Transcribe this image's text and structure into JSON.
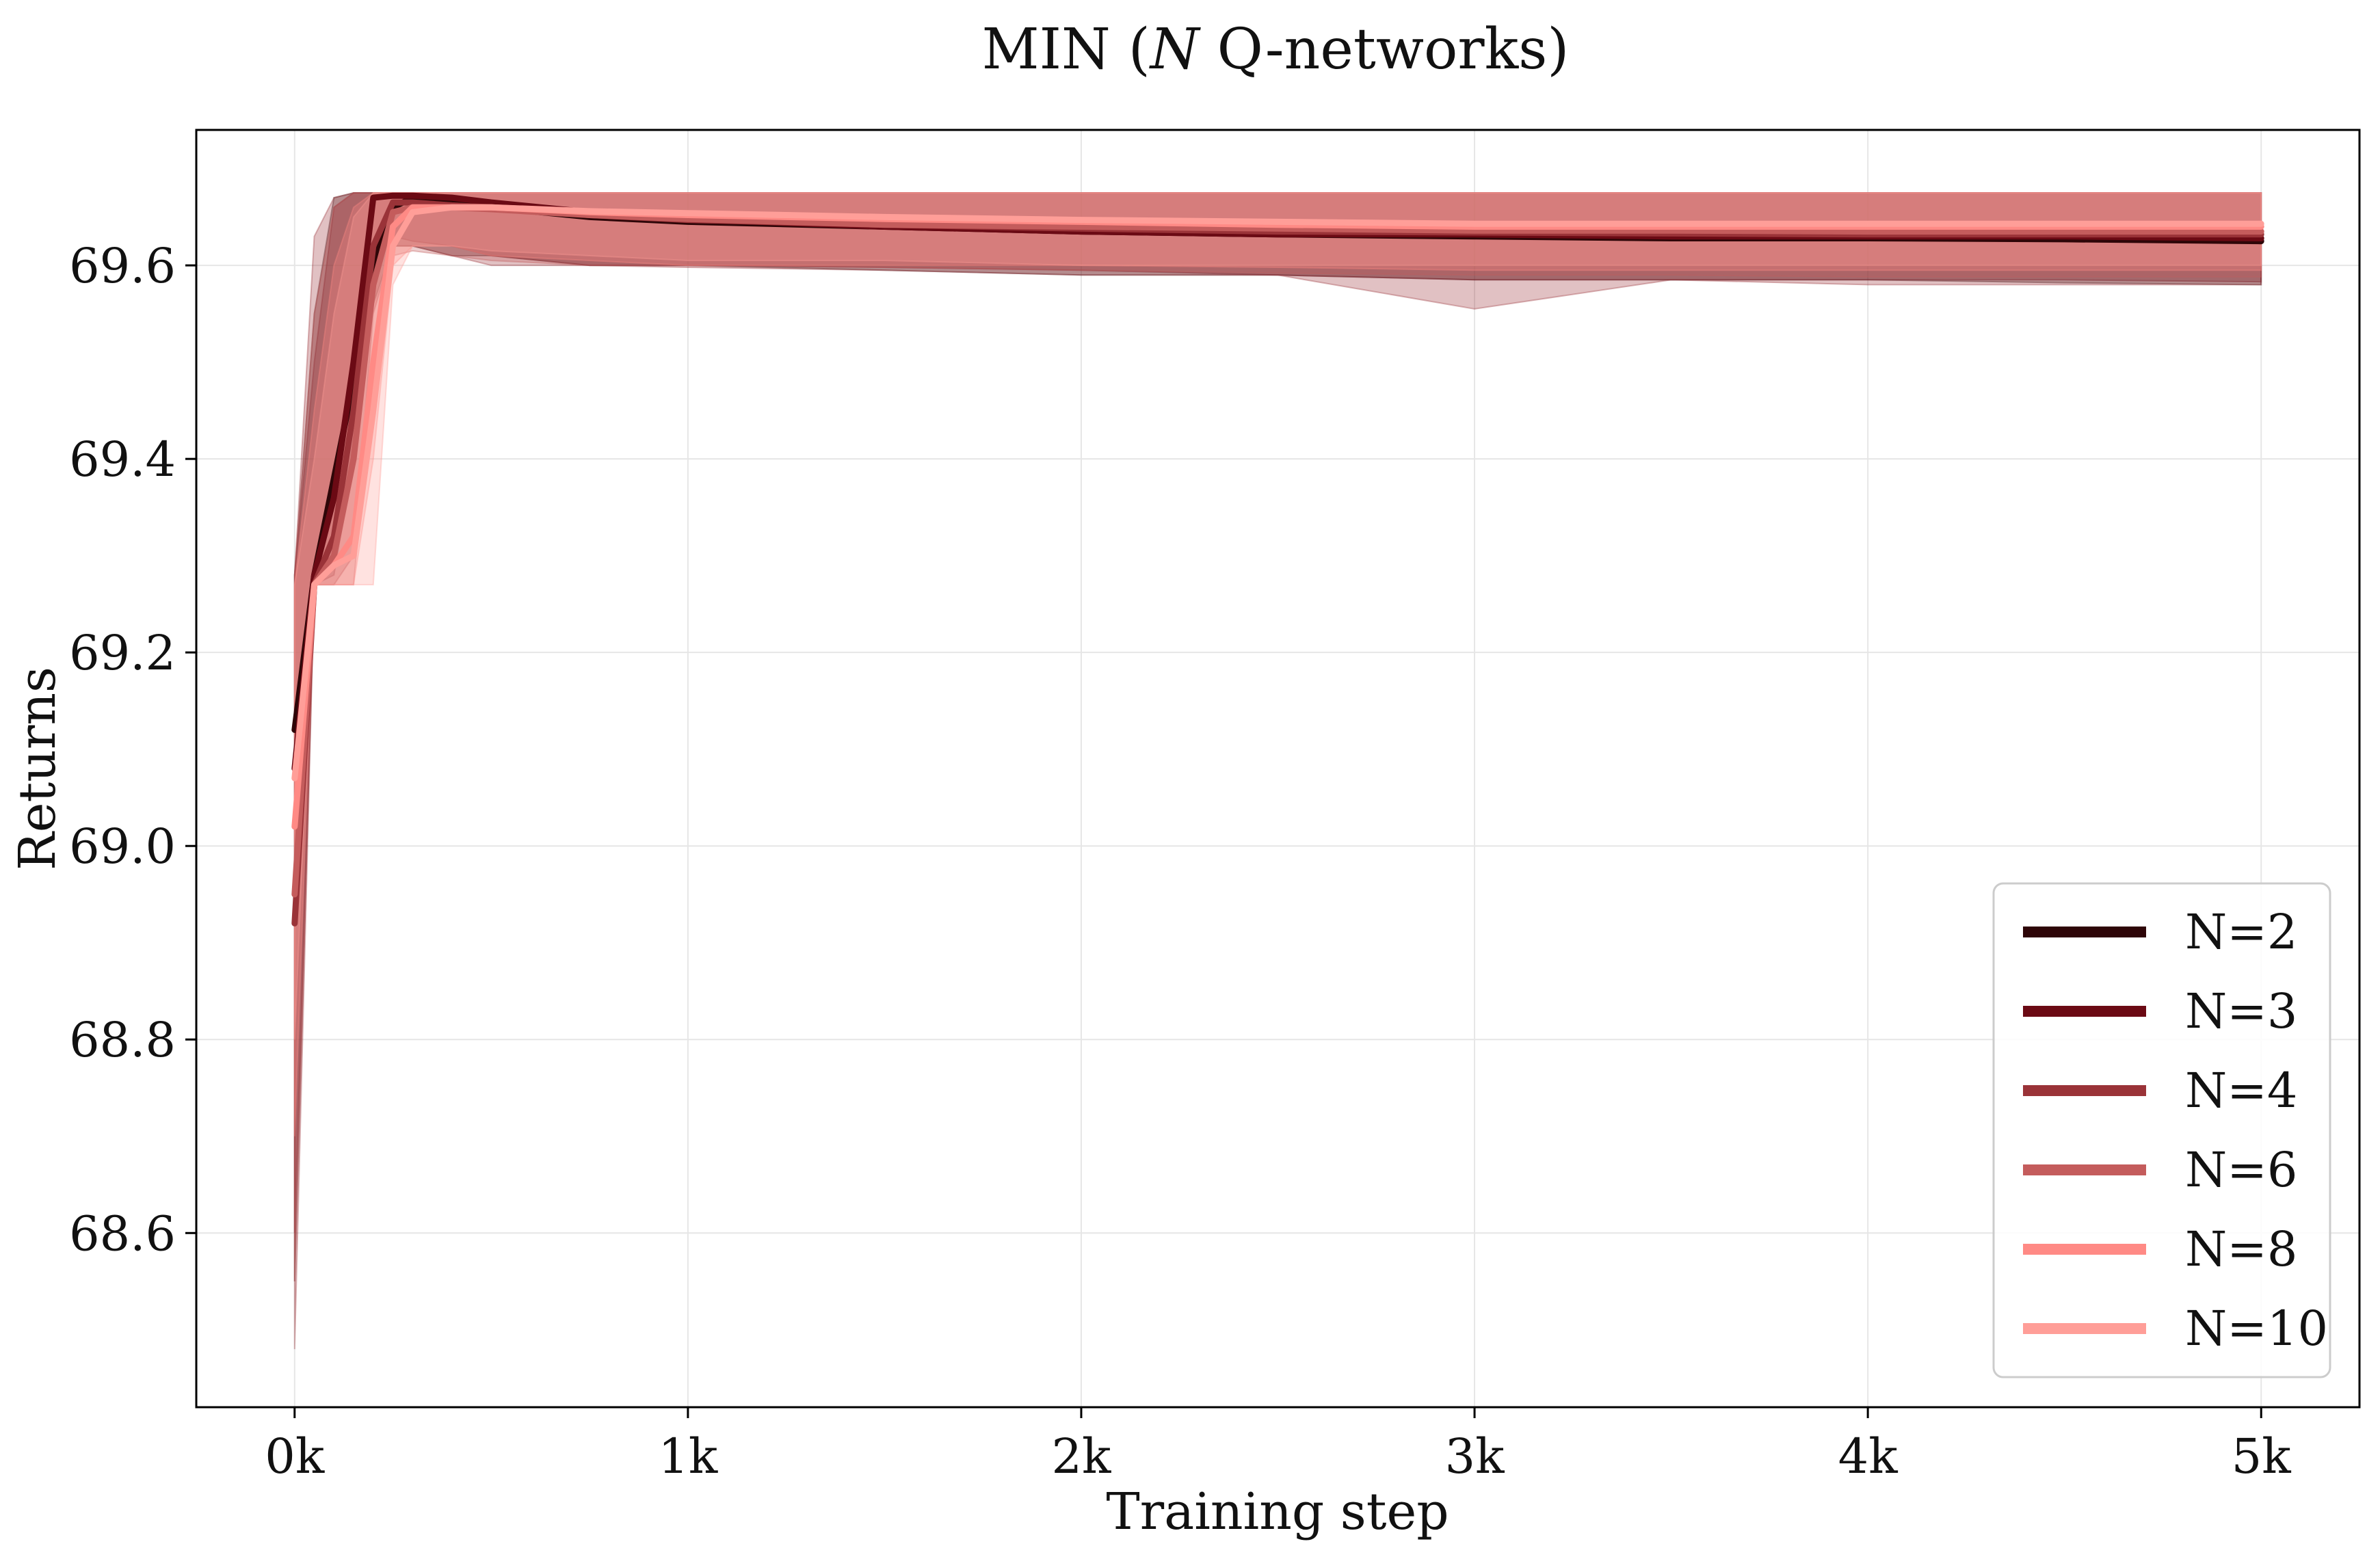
{
  "chart_data": {
    "type": "line",
    "title": "MIN (N Q-networks)",
    "xlabel": "Training step",
    "ylabel": "Returns",
    "xlim": [
      -250,
      5250
    ],
    "ylim": [
      68.42,
      69.74
    ],
    "xticks": [
      0,
      1000,
      2000,
      3000,
      4000,
      5000
    ],
    "xtick_labels": [
      "0k",
      "1k",
      "2k",
      "3k",
      "4k",
      "5k"
    ],
    "yticks": [
      68.6,
      68.8,
      69.0,
      69.2,
      69.4,
      69.6
    ],
    "ytick_labels": [
      "68.6",
      "68.8",
      "69.0",
      "69.2",
      "69.4",
      "69.6"
    ],
    "grid": true,
    "legend_position": "bottom-right",
    "shaded_band": "mean ± spread across runs",
    "series": [
      {
        "name": "N=2",
        "color": "#2e0608",
        "x": [
          0,
          50,
          100,
          150,
          200,
          250,
          300,
          400,
          500,
          750,
          1000,
          1500,
          2000,
          2500,
          3000,
          3500,
          4000,
          4500,
          5000
        ],
        "y": [
          69.12,
          69.28,
          69.38,
          69.48,
          69.6,
          69.66,
          69.67,
          69.665,
          69.66,
          69.65,
          69.645,
          69.64,
          69.635,
          69.632,
          69.63,
          69.628,
          69.628,
          69.627,
          69.625
        ],
        "lower": [
          68.55,
          69.27,
          69.3,
          69.42,
          69.56,
          69.62,
          69.62,
          69.61,
          69.61,
          69.6,
          69.6,
          69.595,
          69.59,
          69.59,
          69.585,
          69.585,
          69.585,
          69.582,
          69.58
        ],
        "upper": [
          69.28,
          69.55,
          69.67,
          69.675,
          69.675,
          69.675,
          69.675,
          69.675,
          69.675,
          69.675,
          69.675,
          69.675,
          69.675,
          69.675,
          69.675,
          69.675,
          69.675,
          69.675,
          69.675
        ]
      },
      {
        "name": "N=3",
        "color": "#6b0a14",
        "x": [
          0,
          50,
          100,
          150,
          200,
          250,
          300,
          400,
          500,
          750,
          1000,
          1500,
          2000,
          2500,
          3000,
          3500,
          4000,
          4500,
          5000
        ],
        "y": [
          69.08,
          69.28,
          69.36,
          69.5,
          69.67,
          69.672,
          69.672,
          69.67,
          69.665,
          69.655,
          69.648,
          69.64,
          69.635,
          69.632,
          69.632,
          69.63,
          69.63,
          69.63,
          69.628
        ],
        "lower": [
          68.6,
          69.27,
          69.28,
          69.4,
          69.6,
          69.63,
          69.625,
          69.62,
          69.61,
          69.6,
          69.6,
          69.598,
          69.595,
          69.59,
          69.585,
          69.585,
          69.585,
          69.585,
          69.583
        ],
        "upper": [
          69.28,
          69.5,
          69.66,
          69.675,
          69.675,
          69.675,
          69.675,
          69.675,
          69.675,
          69.675,
          69.675,
          69.675,
          69.675,
          69.675,
          69.675,
          69.675,
          69.675,
          69.675,
          69.675
        ]
      },
      {
        "name": "N=4",
        "color": "#9a3338",
        "x": [
          0,
          50,
          100,
          150,
          200,
          250,
          300,
          400,
          500,
          750,
          1000,
          1500,
          2000,
          2500,
          3000,
          3500,
          4000,
          4500,
          5000
        ],
        "y": [
          68.92,
          69.27,
          69.32,
          69.45,
          69.62,
          69.665,
          69.665,
          69.662,
          69.66,
          69.652,
          69.647,
          69.642,
          69.638,
          69.635,
          69.634,
          69.633,
          69.632,
          69.632,
          69.632
        ],
        "lower": [
          68.48,
          69.27,
          69.27,
          69.3,
          69.55,
          69.62,
          69.62,
          69.61,
          69.6,
          69.6,
          69.598,
          69.595,
          69.59,
          69.59,
          69.555,
          69.585,
          69.58,
          69.58,
          69.58
        ],
        "upper": [
          69.28,
          69.63,
          69.67,
          69.675,
          69.675,
          69.675,
          69.675,
          69.675,
          69.675,
          69.675,
          69.675,
          69.675,
          69.675,
          69.675,
          69.675,
          69.675,
          69.675,
          69.675,
          69.675
        ]
      },
      {
        "name": "N=6",
        "color": "#c45c5c",
        "x": [
          0,
          50,
          100,
          150,
          200,
          250,
          300,
          400,
          500,
          750,
          1000,
          1500,
          2000,
          2500,
          3000,
          3500,
          4000,
          4500,
          5000
        ],
        "y": [
          68.95,
          69.27,
          69.3,
          69.4,
          69.58,
          69.655,
          69.66,
          69.66,
          69.658,
          69.652,
          69.648,
          69.642,
          69.64,
          69.638,
          69.636,
          69.636,
          69.635,
          69.635,
          69.635
        ],
        "lower": [
          68.55,
          69.27,
          69.27,
          69.27,
          69.5,
          69.61,
          69.615,
          69.61,
          69.605,
          69.6,
          69.6,
          69.598,
          69.595,
          69.592,
          69.59,
          69.59,
          69.588,
          69.588,
          69.588
        ],
        "upper": [
          69.28,
          69.55,
          69.66,
          69.675,
          69.675,
          69.675,
          69.675,
          69.675,
          69.675,
          69.675,
          69.675,
          69.675,
          69.675,
          69.675,
          69.675,
          69.675,
          69.675,
          69.675,
          69.675
        ]
      },
      {
        "name": "N=8",
        "color": "#ff8a85",
        "x": [
          0,
          50,
          100,
          150,
          200,
          250,
          300,
          400,
          500,
          750,
          1000,
          1500,
          2000,
          2500,
          3000,
          3500,
          4000,
          4500,
          5000
        ],
        "y": [
          69.02,
          69.27,
          69.29,
          69.32,
          69.5,
          69.64,
          69.66,
          69.66,
          69.66,
          69.655,
          69.652,
          69.648,
          69.645,
          69.642,
          69.64,
          69.64,
          69.64,
          69.64,
          69.64
        ],
        "lower": [
          68.7,
          69.27,
          69.27,
          69.27,
          69.4,
          69.6,
          69.62,
          69.62,
          69.61,
          69.605,
          69.6,
          69.6,
          69.6,
          69.598,
          69.595,
          69.595,
          69.595,
          69.595,
          69.595
        ],
        "upper": [
          69.27,
          69.45,
          69.6,
          69.66,
          69.675,
          69.675,
          69.675,
          69.675,
          69.675,
          69.675,
          69.675,
          69.675,
          69.675,
          69.675,
          69.675,
          69.675,
          69.675,
          69.675,
          69.675
        ]
      },
      {
        "name": "N=10",
        "color": "#ff9e98",
        "x": [
          0,
          50,
          100,
          150,
          200,
          250,
          300,
          400,
          500,
          750,
          1000,
          1500,
          2000,
          2500,
          3000,
          3500,
          4000,
          4500,
          5000
        ],
        "y": [
          69.07,
          69.27,
          69.29,
          69.3,
          69.45,
          69.62,
          69.655,
          69.66,
          69.66,
          69.656,
          69.654,
          69.65,
          69.647,
          69.645,
          69.643,
          69.643,
          69.643,
          69.643,
          69.643
        ],
        "lower": [
          68.8,
          69.27,
          69.27,
          69.27,
          69.27,
          69.58,
          69.62,
          69.62,
          69.615,
          69.61,
          69.605,
          69.605,
          69.6,
          69.6,
          69.6,
          69.6,
          69.6,
          69.6,
          69.6
        ],
        "upper": [
          69.27,
          69.4,
          69.55,
          69.65,
          69.675,
          69.675,
          69.675,
          69.675,
          69.675,
          69.675,
          69.675,
          69.675,
          69.675,
          69.675,
          69.675,
          69.675,
          69.675,
          69.675,
          69.675
        ]
      }
    ]
  }
}
